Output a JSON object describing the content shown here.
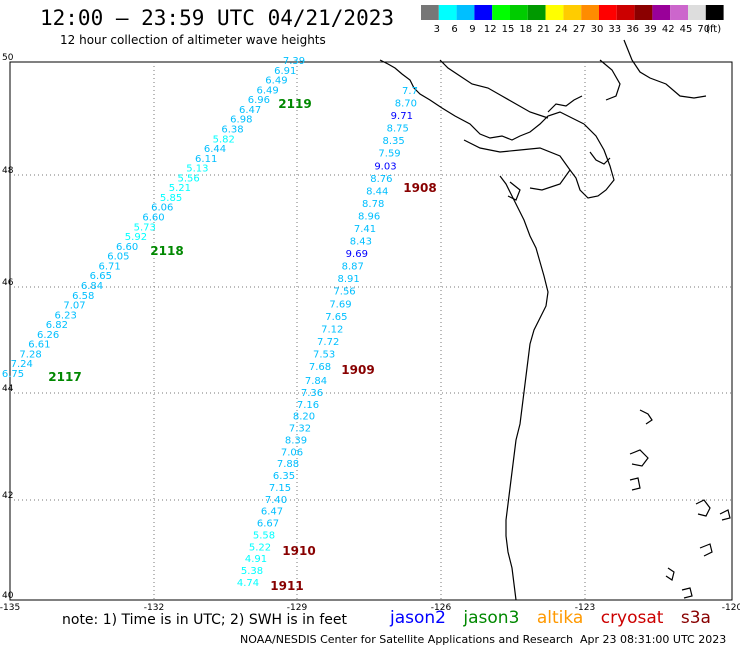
{
  "title": "12:00 – 23:59 UTC 04/21/2023",
  "subtitle": "12 hour collection of altimeter wave heights",
  "scale": {
    "labels": [
      "3",
      "6",
      "9",
      "12",
      "15",
      "18",
      "21",
      "24",
      "27",
      "30",
      "33",
      "36",
      "39",
      "42",
      "45",
      "70",
      "(ft)"
    ],
    "colors": [
      "#777777",
      "#00ffff",
      "#00bfff",
      "#0000ff",
      "#00ff00",
      "#00cc00",
      "#009900",
      "#ffff00",
      "#ffcc00",
      "#ff8c00",
      "#ff0000",
      "#cc0000",
      "#8b0000",
      "#990099",
      "#cc66cc",
      "#dddddd",
      "#000000"
    ]
  },
  "axes": {
    "lat_labels": [
      "50",
      "48",
      "46",
      "44",
      "42",
      "40"
    ],
    "lon_labels": [
      "-135",
      "-132",
      "-129",
      "-126",
      "-123",
      "-120"
    ]
  },
  "tracks": [
    {
      "label": "2119",
      "color": "#008800",
      "values": [
        "7.39",
        "6.91",
        "6.49",
        "6.49",
        "6.96",
        "6.47",
        "6.98",
        "6.38",
        "5.82",
        "6.44",
        "6.11",
        "5.13",
        "5.56",
        "5.21",
        "5.85",
        "6.06",
        "6.60",
        "5.73",
        "5.92",
        "6.60",
        "6.05",
        "6.71",
        "6.65",
        "6.84",
        "6.58",
        "7.07",
        "6.23",
        "6.82",
        "6.26",
        "6.61",
        "7.28",
        "7.24",
        "6.75"
      ]
    },
    {
      "label": "2118",
      "color": "#008800",
      "values": []
    },
    {
      "label": "2117",
      "color": "#008800",
      "values": []
    },
    {
      "label": "1908",
      "color": "#880000",
      "values": [
        "7.7",
        "8.70",
        "9.71",
        "8.75",
        "8.35",
        "7.59",
        "9.03",
        "8.76",
        "8.44",
        "8.78",
        "8.96",
        "7.41",
        "8.43",
        "9.69",
        "8.87",
        "8.91",
        "7.56",
        "7.69",
        "7.65",
        "7.12",
        "7.72",
        "7.53",
        "7.68"
      ]
    },
    {
      "label": "1909",
      "color": "#880000",
      "values": [
        "7.84",
        "7.36",
        "7.16",
        "8.20",
        "7.32",
        "8.39",
        "7.06",
        "7.88",
        "6.35",
        "7.15",
        "7.40",
        "6.47",
        "6.67",
        "5.58",
        "5.22",
        "4.91",
        "5.38",
        "4.74"
      ]
    },
    {
      "label": "1910",
      "color": "#880000",
      "values": []
    },
    {
      "label": "1911",
      "color": "#880000",
      "values": []
    }
  ],
  "note": "note: 1) Time is in UTC; 2) SWH is in feet",
  "legend": [
    {
      "name": "jason2",
      "color": "#0000ff"
    },
    {
      "name": "jason3",
      "color": "#008800"
    },
    {
      "name": "altika",
      "color": "#ff9900"
    },
    {
      "name": "cryosat",
      "color": "#cc0000"
    },
    {
      "name": "s3a",
      "color": "#880000"
    }
  ],
  "credit": "NOAA/NESDIS Center for Satellite Applications and Research",
  "credit_date": "Apr 23 08:31:00 UTC 2023"
}
